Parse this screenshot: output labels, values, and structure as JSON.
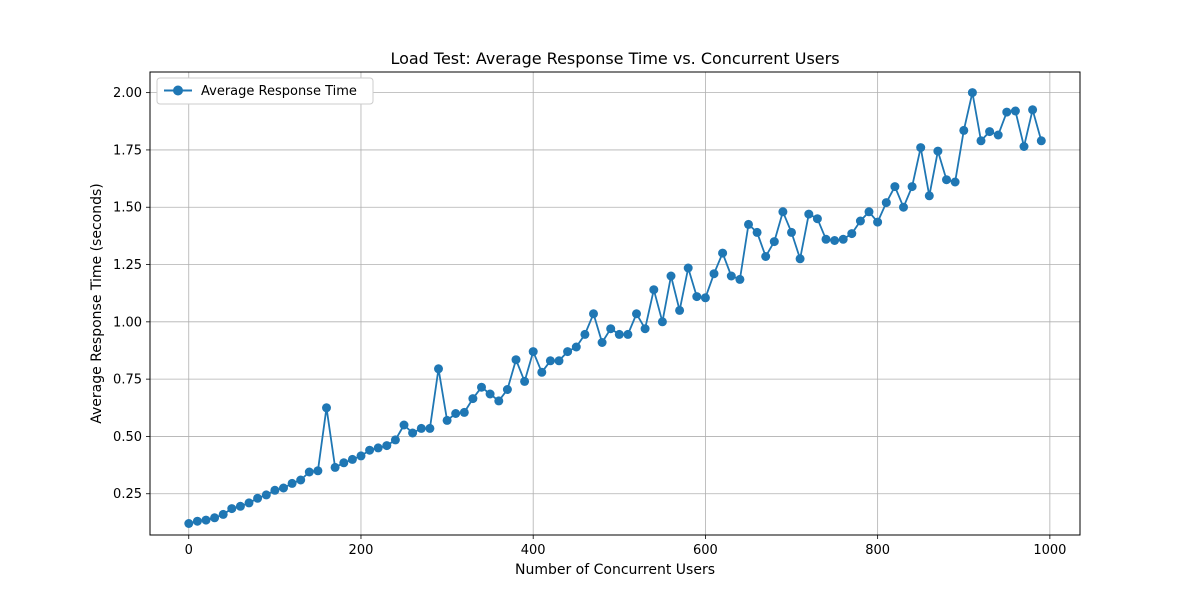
{
  "chart_data": {
    "type": "line",
    "title": "Load Test: Average Response Time vs. Concurrent Users",
    "xlabel": "Number of Concurrent Users",
    "ylabel": "Average Response Time (seconds)",
    "xlim": [
      -45,
      1035
    ],
    "ylim": [
      0.07,
      2.09
    ],
    "xticks": [
      0,
      200,
      400,
      600,
      800,
      1000
    ],
    "xtick_labels": [
      "0",
      "200",
      "400",
      "600",
      "800",
      "1000"
    ],
    "yticks": [
      0.25,
      0.5,
      0.75,
      1.0,
      1.25,
      1.5,
      1.75,
      2.0
    ],
    "ytick_labels": [
      "0.25",
      "0.50",
      "0.75",
      "1.00",
      "1.25",
      "1.50",
      "1.75",
      "2.00"
    ],
    "grid": true,
    "legend_position": "top-left",
    "series": [
      {
        "name": "Average Response Time",
        "color": "#1f77b4",
        "marker": "circle",
        "x": [
          0,
          10,
          20,
          30,
          40,
          50,
          60,
          70,
          80,
          90,
          100,
          110,
          120,
          130,
          140,
          150,
          160,
          170,
          180,
          190,
          200,
          210,
          220,
          230,
          240,
          250,
          260,
          270,
          280,
          290,
          300,
          310,
          320,
          330,
          340,
          350,
          360,
          370,
          380,
          390,
          400,
          410,
          420,
          430,
          440,
          450,
          460,
          470,
          480,
          490,
          500,
          510,
          520,
          530,
          540,
          550,
          560,
          570,
          580,
          590,
          600,
          610,
          620,
          630,
          640,
          650,
          660,
          670,
          680,
          690,
          700,
          710,
          720,
          730,
          740,
          750,
          760,
          770,
          780,
          790,
          800,
          810,
          820,
          830,
          840,
          850,
          860,
          870,
          880,
          890,
          900,
          910,
          920,
          930,
          940,
          950,
          960,
          970,
          980,
          990
        ],
        "y": [
          0.12,
          0.13,
          0.135,
          0.145,
          0.16,
          0.185,
          0.195,
          0.21,
          0.23,
          0.245,
          0.265,
          0.275,
          0.295,
          0.31,
          0.345,
          0.35,
          0.625,
          0.365,
          0.385,
          0.4,
          0.415,
          0.44,
          0.45,
          0.46,
          0.485,
          0.55,
          0.515,
          0.535,
          0.535,
          0.795,
          0.57,
          0.6,
          0.605,
          0.665,
          0.715,
          0.685,
          0.655,
          0.705,
          0.835,
          0.74,
          0.87,
          0.78,
          0.83,
          0.83,
          0.87,
          0.89,
          0.945,
          1.035,
          0.91,
          0.97,
          0.945,
          0.945,
          1.035,
          0.97,
          1.14,
          1.0,
          1.2,
          1.05,
          1.235,
          1.11,
          1.105,
          1.21,
          1.3,
          1.2,
          1.185,
          1.425,
          1.39,
          1.285,
          1.35,
          1.48,
          1.39,
          1.275,
          1.47,
          1.45,
          1.36,
          1.355,
          1.36,
          1.385,
          1.44,
          1.48,
          1.435,
          1.52,
          1.59,
          1.5,
          1.59,
          1.76,
          1.55,
          1.745,
          1.62,
          1.61,
          1.835,
          2.0,
          1.79,
          1.83,
          1.815,
          1.915,
          1.92,
          1.765,
          1.925,
          1.79
        ]
      }
    ]
  }
}
